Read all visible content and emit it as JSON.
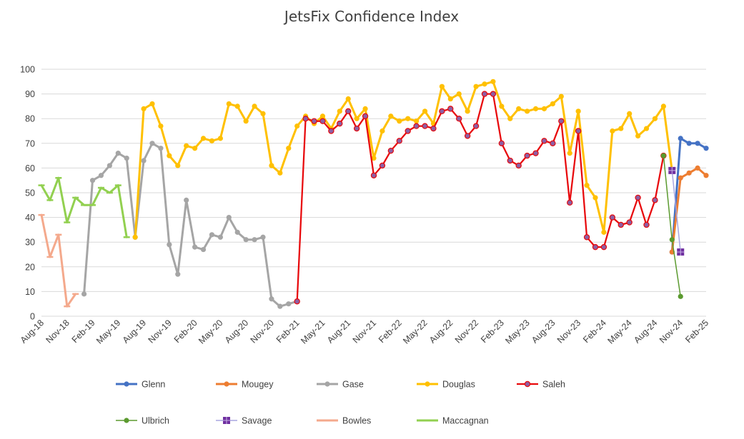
{
  "chart_data": {
    "type": "line",
    "title": "JetsFix Confidence Index",
    "xlabel": "",
    "ylabel": "",
    "ylim": [
      0,
      100
    ],
    "yticks": [
      0,
      10,
      20,
      30,
      40,
      50,
      60,
      70,
      80,
      90,
      100
    ],
    "grid": true,
    "legend_position": "bottom",
    "x": [
      "Aug-18",
      "Sep-18",
      "Oct-18",
      "Nov-18",
      "Dec-18",
      "Jan-19",
      "Feb-19",
      "Mar-19",
      "Apr-19",
      "May-19",
      "Jun-19",
      "Jul-19",
      "Aug-19",
      "Sep-19",
      "Oct-19",
      "Nov-19",
      "Dec-19",
      "Jan-20",
      "Feb-20",
      "Mar-20",
      "Apr-20",
      "May-20",
      "Jun-20",
      "Jul-20",
      "Aug-20",
      "Sep-20",
      "Oct-20",
      "Nov-20",
      "Dec-20",
      "Jan-21",
      "Feb-21",
      "Mar-21",
      "Apr-21",
      "May-21",
      "Jun-21",
      "Jul-21",
      "Aug-21",
      "Sep-21",
      "Oct-21",
      "Nov-21",
      "Dec-21",
      "Jan-22",
      "Feb-22",
      "Mar-22",
      "Apr-22",
      "May-22",
      "Jun-22",
      "Jul-22",
      "Aug-22",
      "Sep-22",
      "Oct-22",
      "Nov-22",
      "Dec-22",
      "Jan-23",
      "Feb-23",
      "Mar-23",
      "Apr-23",
      "May-23",
      "Jun-23",
      "Jul-23",
      "Aug-23",
      "Sep-23",
      "Oct-23",
      "Nov-23",
      "Dec-23",
      "Jan-24",
      "Feb-24",
      "Mar-24",
      "Apr-24",
      "May-24",
      "Jun-24",
      "Jul-24",
      "Aug-24",
      "Sep-24",
      "Oct-24",
      "Nov-24",
      "Dec-24",
      "Jan-25",
      "Feb-25"
    ],
    "x_tick_labels": [
      "Aug-18",
      "Nov-18",
      "Feb-19",
      "May-19",
      "Aug-19",
      "Nov-19",
      "Feb-20",
      "May-20",
      "Aug-20",
      "Nov-20",
      "Feb-21",
      "May-21",
      "Aug-21",
      "Nov-21",
      "Feb-22",
      "May-22",
      "Aug-22",
      "Nov-22",
      "Feb-23",
      "May-23",
      "Aug-23",
      "Nov-23",
      "Feb-24",
      "May-24",
      "Aug-24",
      "Nov-24",
      "Feb-25"
    ],
    "series": [
      {
        "name": "Glenn",
        "color": "#4472c4",
        "marker": "circle",
        "width": 3,
        "points": [
          [
            "Oct-24",
            26
          ],
          [
            "Nov-24",
            72
          ],
          [
            "Dec-24",
            70
          ],
          [
            "Jan-25",
            70
          ],
          [
            "Feb-25",
            68
          ]
        ]
      },
      {
        "name": "Mougey",
        "color": "#ed7d31",
        "marker": "circle",
        "width": 3,
        "points": [
          [
            "Oct-24",
            26
          ],
          [
            "Nov-24",
            56
          ],
          [
            "Dec-24",
            58
          ],
          [
            "Jan-25",
            60
          ],
          [
            "Feb-25",
            57
          ]
        ]
      },
      {
        "name": "Gase",
        "color": "#a5a5a5",
        "marker": "circle",
        "width": 3,
        "points": [
          [
            "Jan-19",
            9
          ],
          [
            "Feb-19",
            55
          ],
          [
            "Mar-19",
            57
          ],
          [
            "Apr-19",
            61
          ],
          [
            "May-19",
            66
          ],
          [
            "Jun-19",
            64
          ],
          [
            "Jul-19",
            32
          ],
          [
            "Aug-19",
            63
          ],
          [
            "Sep-19",
            70
          ],
          [
            "Oct-19",
            68
          ],
          [
            "Nov-19",
            29
          ],
          [
            "Dec-19",
            17
          ],
          [
            "Jan-20",
            47
          ],
          [
            "Feb-20",
            28
          ],
          [
            "Mar-20",
            27
          ],
          [
            "Apr-20",
            33
          ],
          [
            "May-20",
            32
          ],
          [
            "Jun-20",
            40
          ],
          [
            "Jul-20",
            34
          ],
          [
            "Aug-20",
            31
          ],
          [
            "Sep-20",
            31
          ],
          [
            "Oct-20",
            32
          ],
          [
            "Nov-20",
            7
          ],
          [
            "Dec-20",
            4
          ],
          [
            "Jan-21",
            5
          ],
          [
            "Feb-21",
            6
          ]
        ]
      },
      {
        "name": "Douglas",
        "color": "#ffc000",
        "marker": "circle",
        "width": 3,
        "points": [
          [
            "Jul-19",
            32
          ],
          [
            "Aug-19",
            84
          ],
          [
            "Sep-19",
            86
          ],
          [
            "Oct-19",
            77
          ],
          [
            "Nov-19",
            65
          ],
          [
            "Dec-19",
            61
          ],
          [
            "Jan-20",
            69
          ],
          [
            "Feb-20",
            68
          ],
          [
            "Mar-20",
            72
          ],
          [
            "Apr-20",
            71
          ],
          [
            "May-20",
            72
          ],
          [
            "Jun-20",
            86
          ],
          [
            "Jul-20",
            85
          ],
          [
            "Aug-20",
            79
          ],
          [
            "Sep-20",
            85
          ],
          [
            "Oct-20",
            82
          ],
          [
            "Nov-20",
            61
          ],
          [
            "Dec-20",
            58
          ],
          [
            "Jan-21",
            68
          ],
          [
            "Feb-21",
            77
          ],
          [
            "Mar-21",
            81
          ],
          [
            "Apr-21",
            78
          ],
          [
            "May-21",
            81
          ],
          [
            "Jun-21",
            76
          ],
          [
            "Jul-21",
            83
          ],
          [
            "Aug-21",
            88
          ],
          [
            "Sep-21",
            80
          ],
          [
            "Oct-21",
            84
          ],
          [
            "Nov-21",
            64
          ],
          [
            "Dec-21",
            75
          ],
          [
            "Jan-22",
            81
          ],
          [
            "Feb-22",
            79
          ],
          [
            "Mar-22",
            80
          ],
          [
            "Apr-22",
            79
          ],
          [
            "May-22",
            83
          ],
          [
            "Jun-22",
            78
          ],
          [
            "Jul-22",
            93
          ],
          [
            "Aug-22",
            88
          ],
          [
            "Sep-22",
            90
          ],
          [
            "Oct-22",
            83
          ],
          [
            "Nov-22",
            93
          ],
          [
            "Dec-22",
            94
          ],
          [
            "Jan-23",
            95
          ],
          [
            "Feb-23",
            85
          ],
          [
            "Mar-23",
            80
          ],
          [
            "Apr-23",
            84
          ],
          [
            "May-23",
            83
          ],
          [
            "Jun-23",
            84
          ],
          [
            "Jul-23",
            84
          ],
          [
            "Aug-23",
            86
          ],
          [
            "Sep-23",
            89
          ],
          [
            "Oct-23",
            66
          ],
          [
            "Nov-23",
            83
          ],
          [
            "Dec-23",
            53
          ],
          [
            "Jan-24",
            48
          ],
          [
            "Feb-24",
            34
          ],
          [
            "Mar-24",
            75
          ],
          [
            "Apr-24",
            76
          ],
          [
            "May-24",
            82
          ],
          [
            "Jun-24",
            73
          ],
          [
            "Jul-24",
            76
          ],
          [
            "Aug-24",
            80
          ],
          [
            "Sep-24",
            85
          ],
          [
            "Oct-24",
            59
          ]
        ]
      },
      {
        "name": "Saleh",
        "color": "#e8090c",
        "marker": "circle",
        "marker_fill": "#8e5ea2",
        "width": 2.25,
        "points": [
          [
            "Feb-21",
            6
          ],
          [
            "Mar-21",
            80
          ],
          [
            "Apr-21",
            79
          ],
          [
            "May-21",
            79
          ],
          [
            "Jun-21",
            75
          ],
          [
            "Jul-21",
            78
          ],
          [
            "Aug-21",
            83
          ],
          [
            "Sep-21",
            76
          ],
          [
            "Oct-21",
            81
          ],
          [
            "Nov-21",
            57
          ],
          [
            "Dec-21",
            61
          ],
          [
            "Jan-22",
            67
          ],
          [
            "Feb-22",
            71
          ],
          [
            "Mar-22",
            75
          ],
          [
            "Apr-22",
            77
          ],
          [
            "May-22",
            77
          ],
          [
            "Jun-22",
            76
          ],
          [
            "Jul-22",
            83
          ],
          [
            "Aug-22",
            84
          ],
          [
            "Sep-22",
            80
          ],
          [
            "Oct-22",
            73
          ],
          [
            "Nov-22",
            77
          ],
          [
            "Dec-22",
            90
          ],
          [
            "Jan-23",
            90
          ],
          [
            "Feb-23",
            70
          ],
          [
            "Mar-23",
            63
          ],
          [
            "Apr-23",
            61
          ],
          [
            "May-23",
            65
          ],
          [
            "Jun-23",
            66
          ],
          [
            "Jul-23",
            71
          ],
          [
            "Aug-23",
            70
          ],
          [
            "Sep-23",
            79
          ],
          [
            "Oct-23",
            46
          ],
          [
            "Nov-23",
            75
          ],
          [
            "Dec-23",
            32
          ],
          [
            "Jan-24",
            28
          ],
          [
            "Feb-24",
            28
          ],
          [
            "Mar-24",
            40
          ],
          [
            "Apr-24",
            37
          ],
          [
            "May-24",
            38
          ],
          [
            "Jun-24",
            48
          ],
          [
            "Jul-24",
            37
          ],
          [
            "Aug-24",
            47
          ],
          [
            "Sep-24",
            65
          ]
        ]
      },
      {
        "name": "Ulbrich",
        "color": "#5b9a2f",
        "marker": "circle",
        "width": 1.5,
        "points": [
          [
            "Sep-24",
            65
          ],
          [
            "Oct-24",
            31
          ],
          [
            "Nov-24",
            8
          ]
        ]
      },
      {
        "name": "Savage",
        "color": "#a9a6e0",
        "marker": "square",
        "marker_fill": "#7030a0",
        "width": 1.5,
        "points": [
          [
            "Oct-24",
            59
          ],
          [
            "Nov-24",
            26
          ]
        ]
      },
      {
        "name": "Bowles",
        "color": "#f4a98c",
        "marker": "dash",
        "width": 3,
        "points": [
          [
            "Aug-18",
            41
          ],
          [
            "Sep-18",
            24
          ],
          [
            "Oct-18",
            33
          ],
          [
            "Nov-18",
            4
          ],
          [
            "Dec-18",
            9
          ]
        ]
      },
      {
        "name": "Maccagnan",
        "color": "#92d050",
        "marker": "dash",
        "width": 3,
        "points": [
          [
            "Aug-18",
            53
          ],
          [
            "Sep-18",
            47
          ],
          [
            "Oct-18",
            56
          ],
          [
            "Nov-18",
            38
          ],
          [
            "Dec-18",
            48
          ],
          [
            "Jan-19",
            45
          ],
          [
            "Feb-19",
            45
          ],
          [
            "Mar-19",
            52
          ],
          [
            "Apr-19",
            50
          ],
          [
            "May-19",
            53
          ],
          [
            "Jun-19",
            32
          ]
        ]
      }
    ]
  }
}
